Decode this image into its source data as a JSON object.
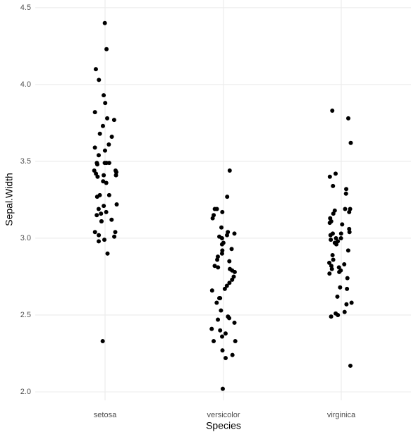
{
  "chart_data": {
    "type": "strip",
    "x_label": "Species",
    "y_label": "Sepal.Width",
    "categories": [
      "setosa",
      "versicolor",
      "virginica"
    ],
    "values": [
      [
        4.4,
        4.23,
        4.1,
        4.03,
        3.93,
        3.88,
        3.82,
        3.77,
        3.78,
        3.73,
        3.68,
        3.66,
        3.61,
        3.59,
        3.57,
        3.54,
        3.49,
        3.49,
        3.49,
        3.49,
        3.48,
        3.44,
        3.44,
        3.43,
        3.42,
        3.41,
        3.41,
        3.4,
        3.37,
        3.36,
        3.28,
        3.28,
        3.27,
        3.22,
        3.21,
        3.19,
        3.17,
        3.16,
        3.15,
        3.12,
        3.11,
        3.11,
        3.04,
        3.04,
        3.02,
        3.01,
        2.99,
        2.98,
        2.9,
        2.33
      ],
      [
        3.44,
        3.27,
        3.19,
        3.19,
        3.17,
        3.15,
        3.13,
        3.07,
        3.04,
        3.02,
        3.03,
        3.01,
        3.0,
        2.97,
        2.96,
        2.93,
        2.92,
        2.9,
        2.88,
        2.86,
        2.85,
        2.82,
        2.81,
        2.8,
        2.79,
        2.78,
        2.75,
        2.73,
        2.71,
        2.69,
        2.67,
        2.66,
        2.61,
        2.61,
        2.58,
        2.53,
        2.49,
        2.48,
        2.47,
        2.45,
        2.41,
        2.4,
        2.38,
        2.36,
        2.33,
        2.33,
        2.27,
        2.24,
        2.22,
        2.02
      ],
      [
        3.83,
        3.78,
        3.62,
        3.42,
        3.4,
        3.34,
        3.32,
        3.29,
        3.19,
        3.19,
        3.18,
        3.17,
        3.16,
        3.13,
        3.11,
        3.1,
        3.09,
        3.06,
        3.04,
        3.03,
        3.03,
        3.02,
        3.0,
        3.0,
        2.99,
        2.98,
        2.97,
        2.96,
        2.92,
        2.89,
        2.86,
        2.84,
        2.83,
        2.82,
        2.81,
        2.8,
        2.79,
        2.78,
        2.77,
        2.74,
        2.68,
        2.67,
        2.62,
        2.58,
        2.57,
        2.52,
        2.51,
        2.5,
        2.49,
        2.17
      ]
    ],
    "color": "#000000",
    "ylim": [
      1.945,
      4.55
    ],
    "yticks": [
      {
        "value": 2,
        "label": "2.0"
      },
      2.5,
      {
        "value": 3,
        "label": "3.0"
      },
      3.5,
      {
        "value": 4,
        "label": "4.0"
      },
      4.5
    ],
    "grid": true
  }
}
